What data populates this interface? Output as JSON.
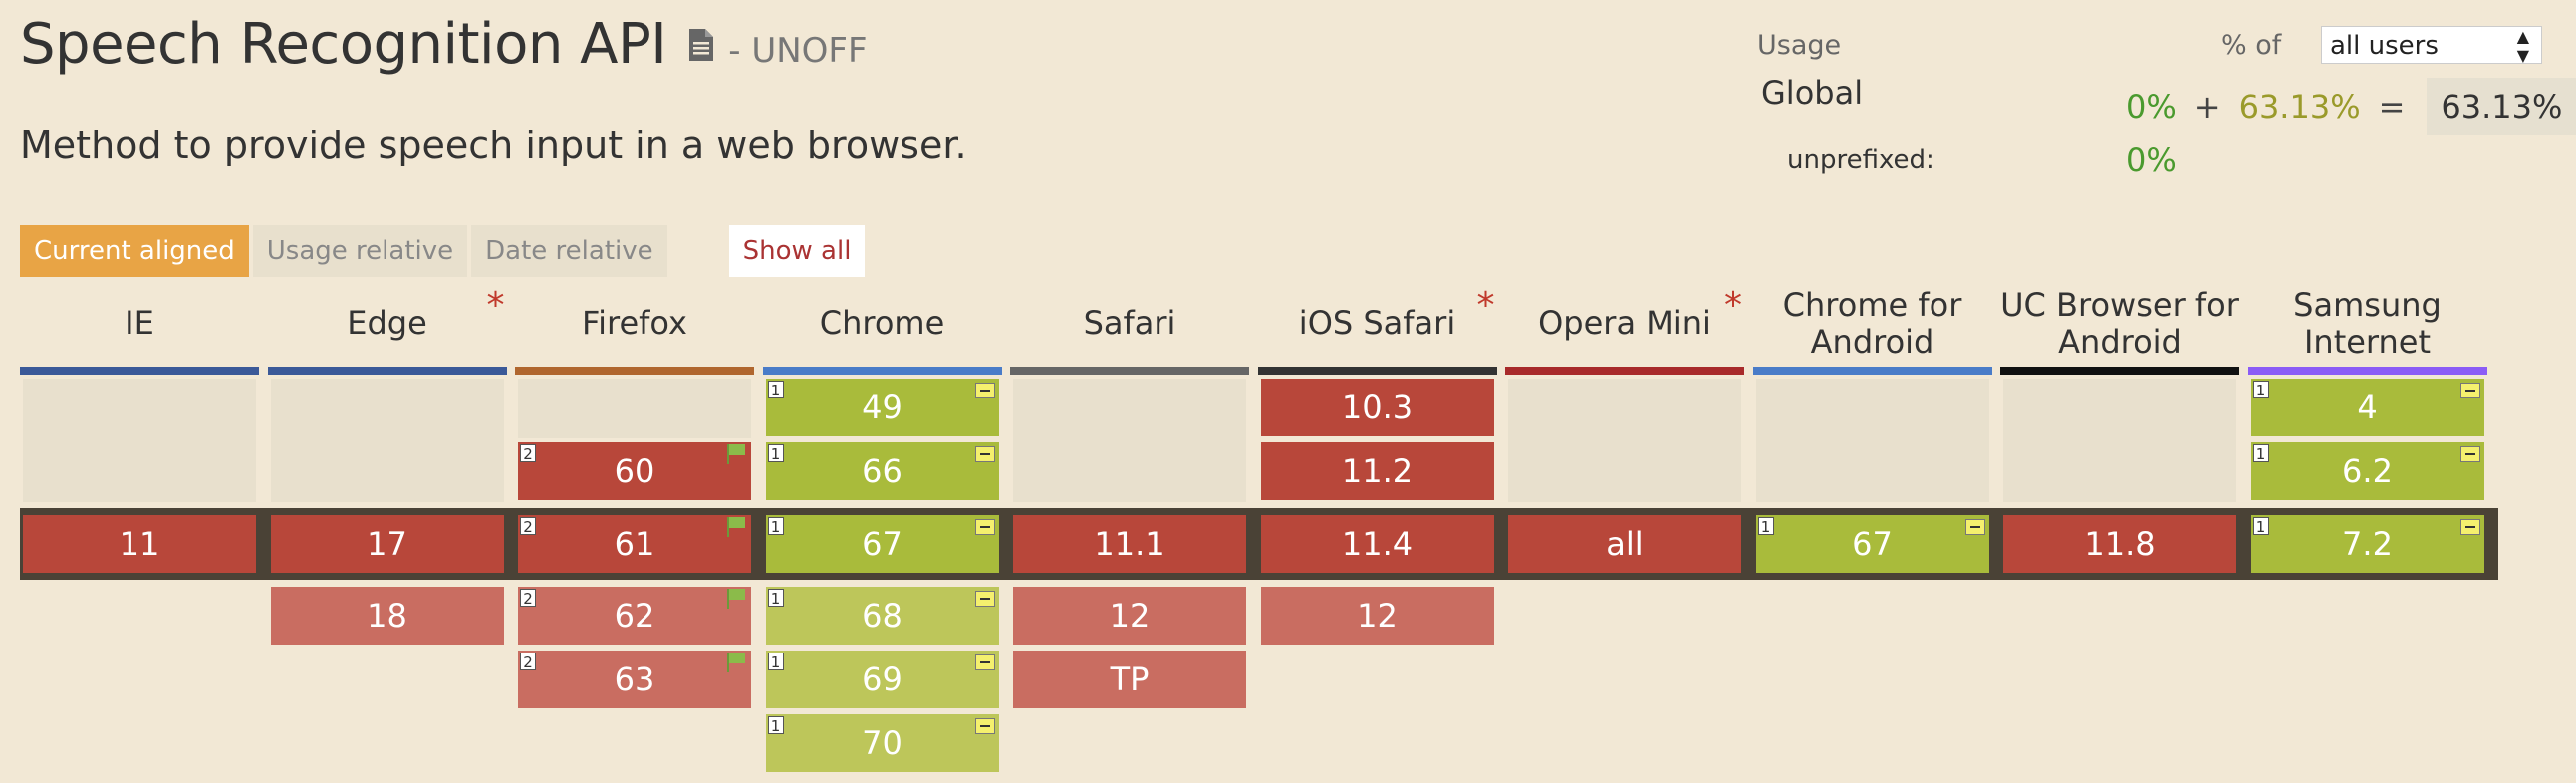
{
  "title": "Speech Recognition API",
  "status": "- UNOFF",
  "description": "Method to provide speech input in a web browser.",
  "usage": {
    "label": "Usage",
    "pct_of": "% of",
    "select_value": "all users",
    "global_label": "Global",
    "supported": "0%",
    "plus": "+",
    "partial": "63.13%",
    "equals": "=",
    "total": "63.13%",
    "unprefixed_label": "unprefixed:",
    "unprefixed_value": "0%"
  },
  "controls": {
    "current_aligned": "Current aligned",
    "usage_relative": "Usage relative",
    "date_relative": "Date relative",
    "show_all": "Show all"
  },
  "colors": {
    "IE": "#3b5998",
    "Edge": "#3b5998",
    "Firefox": "#b0662e",
    "Chrome": "#4a7cc8",
    "Safari": "#666666",
    "iOS Safari": "#333333",
    "Opera Mini": "#a82a2a",
    "Chrome for Android": "#4a7cc8",
    "UC Browser for Android": "#111111",
    "Samsung Internet": "#8b5cf6"
  },
  "browsers": [
    {
      "name": "IE",
      "star": "",
      "past": [],
      "current": {
        "v": "11",
        "s": "n"
      },
      "future": []
    },
    {
      "name": "Edge",
      "star": "*",
      "past": [],
      "current": {
        "v": "17",
        "s": "n"
      },
      "future": [
        {
          "v": "18",
          "s": "n"
        }
      ]
    },
    {
      "name": "Firefox",
      "star": "",
      "past": [
        {
          "v": "60",
          "s": "n",
          "note": "2",
          "flag": true
        }
      ],
      "current": {
        "v": "61",
        "s": "n",
        "note": "2",
        "flag": true
      },
      "future": [
        {
          "v": "62",
          "s": "n",
          "note": "2",
          "flag": true
        },
        {
          "v": "63",
          "s": "n",
          "note": "2",
          "flag": true
        }
      ]
    },
    {
      "name": "Chrome",
      "star": "",
      "past": [
        {
          "v": "49",
          "s": "p",
          "note": "1",
          "minus": true
        },
        {
          "v": "66",
          "s": "p",
          "note": "1",
          "minus": true
        }
      ],
      "current": {
        "v": "67",
        "s": "p",
        "note": "1",
        "minus": true
      },
      "future": [
        {
          "v": "68",
          "s": "p",
          "note": "1",
          "minus": true
        },
        {
          "v": "69",
          "s": "p",
          "note": "1",
          "minus": true
        },
        {
          "v": "70",
          "s": "p",
          "note": "1",
          "minus": true
        }
      ]
    },
    {
      "name": "Safari",
      "star": "",
      "past": [],
      "current": {
        "v": "11.1",
        "s": "n"
      },
      "future": [
        {
          "v": "12",
          "s": "n"
        },
        {
          "v": "TP",
          "s": "n"
        }
      ]
    },
    {
      "name": "iOS Safari",
      "star": "*",
      "past": [
        {
          "v": "10.3",
          "s": "n"
        },
        {
          "v": "11.2",
          "s": "n"
        }
      ],
      "current": {
        "v": "11.4",
        "s": "n"
      },
      "future": [
        {
          "v": "12",
          "s": "n"
        }
      ]
    },
    {
      "name": "Opera Mini",
      "star": "*",
      "past": [],
      "current": {
        "v": "all",
        "s": "n"
      },
      "future": []
    },
    {
      "name": "Chrome for Android",
      "star": "",
      "past": [],
      "current": {
        "v": "67",
        "s": "p",
        "note": "1",
        "minus": true
      },
      "future": []
    },
    {
      "name": "UC Browser for Android",
      "star": "",
      "past": [],
      "current": {
        "v": "11.8",
        "s": "n"
      },
      "future": []
    },
    {
      "name": "Samsung Internet",
      "star": "",
      "past": [
        {
          "v": "4",
          "s": "p",
          "note": "1",
          "minus": true
        },
        {
          "v": "6.2",
          "s": "p",
          "note": "1",
          "minus": true
        }
      ],
      "current": {
        "v": "7.2",
        "s": "p",
        "note": "1",
        "minus": true
      },
      "future": []
    }
  ]
}
